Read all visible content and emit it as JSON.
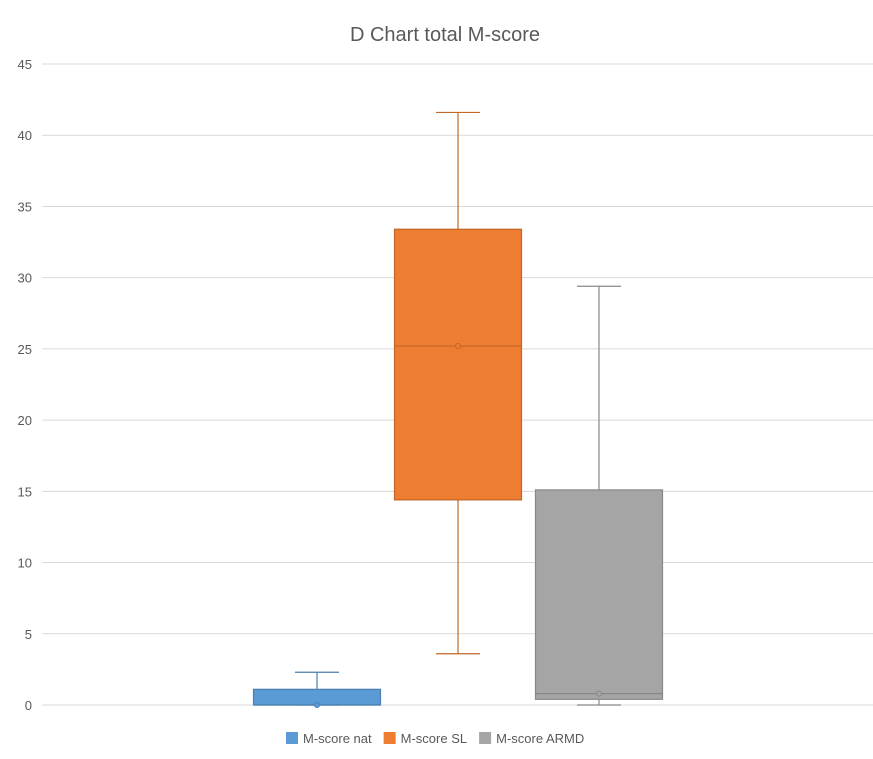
{
  "chart_data": {
    "type": "box",
    "title": "D Chart total M-score",
    "xlabel": "",
    "ylabel": "",
    "ylim": [
      0,
      45
    ],
    "yticks": [
      0,
      5,
      10,
      15,
      20,
      25,
      30,
      35,
      40,
      45
    ],
    "ytick_labels": [
      "0",
      "5",
      "10",
      "15",
      "20",
      "25",
      "30",
      "35",
      "40",
      "45"
    ],
    "grid": true,
    "legend_position": "bottom",
    "series": [
      {
        "name": "M-score nat",
        "color": "#5B9BD5",
        "min": 0,
        "q1": 0,
        "median": 0,
        "mean": 0,
        "q3": 1.1,
        "max": 2.3
      },
      {
        "name": "M-score SL",
        "color": "#ED7D31",
        "min": 3.6,
        "q1": 14.4,
        "median": 25.2,
        "mean": 25.2,
        "q3": 33.4,
        "max": 41.6
      },
      {
        "name": "M-score ARMD",
        "color": "#A5A5A5",
        "min": 0,
        "q1": 0.4,
        "median": 0.8,
        "mean": 0.8,
        "q3": 15.1,
        "max": 29.4
      }
    ]
  }
}
